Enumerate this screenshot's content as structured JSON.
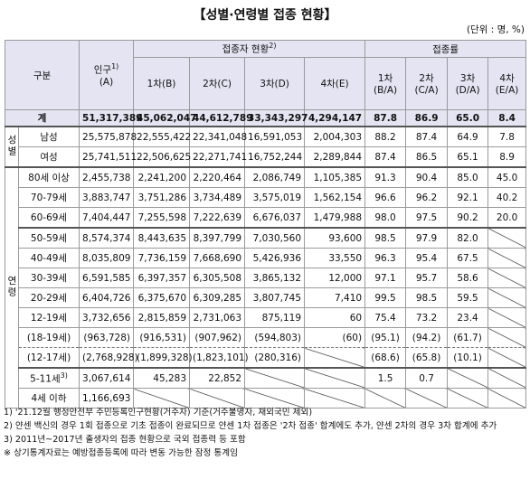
{
  "title": "【성별·연령별 접종 현황】",
  "unit": "(단위 : 명, %)",
  "table": {
    "header": {
      "group": "구분",
      "population": {
        "text": "인구",
        "note": "1)",
        "sub": "(A)"
      },
      "vaccinated": {
        "text": "접종자 현황",
        "note": "2)"
      },
      "rate": "접종률",
      "vaccinated_cols": [
        "1차(B)",
        "2차(C)",
        "3차(D)",
        "4차(E)"
      ],
      "rate_cols": [
        [
          "1차",
          "(B/A)"
        ],
        [
          "2차",
          "(C/A)"
        ],
        [
          "3차",
          "(D/A)"
        ],
        [
          "4차",
          "(E/A)"
        ]
      ]
    },
    "total": {
      "label": "계",
      "cells": [
        "51,317,389",
        "45,062,047",
        "44,612,789",
        "33,343,297",
        "4,294,147",
        "87.8",
        "86.9",
        "65.0",
        "8.4"
      ]
    },
    "groups": [
      {
        "label": "성별",
        "rows": [
          {
            "label": "남성",
            "cells": [
              "25,575,878",
              "22,555,422",
              "22,341,048",
              "16,591,053",
              "2,004,303",
              "88.2",
              "87.4",
              "64.9",
              "7.8"
            ]
          },
          {
            "label": "여성",
            "cells": [
              "25,741,511",
              "22,506,625",
              "22,271,741",
              "16,752,244",
              "2,289,844",
              "87.4",
              "86.5",
              "65.1",
              "8.9"
            ]
          }
        ]
      },
      {
        "label": "연령",
        "rows": [
          {
            "label": "80세 이상",
            "cells": [
              "2,455,738",
              "2,241,200",
              "2,220,464",
              "2,086,749",
              "1,105,385",
              "91.3",
              "90.4",
              "85.0",
              "45.0"
            ]
          },
          {
            "label": "70-79세",
            "cells": [
              "3,883,747",
              "3,751,286",
              "3,734,489",
              "3,575,019",
              "1,562,154",
              "96.6",
              "96.2",
              "92.1",
              "40.2"
            ]
          },
          {
            "label": "60-69세",
            "cells": [
              "7,404,447",
              "7,255,598",
              "7,222,639",
              "6,676,037",
              "1,479,988",
              "98.0",
              "97.5",
              "90.2",
              "20.0"
            ]
          },
          {
            "label": "50-59세",
            "cells": [
              "8,574,374",
              "8,443,635",
              "8,397,799",
              "7,030,560",
              "93,600",
              "98.5",
              "97.9",
              "82.0",
              null
            ]
          },
          {
            "label": "40-49세",
            "cells": [
              "8,035,809",
              "7,736,159",
              "7,668,690",
              "5,426,936",
              "33,550",
              "96.3",
              "95.4",
              "67.5",
              null
            ]
          },
          {
            "label": "30-39세",
            "cells": [
              "6,591,585",
              "6,397,357",
              "6,305,508",
              "3,865,132",
              "12,000",
              "97.1",
              "95.7",
              "58.6",
              null
            ]
          },
          {
            "label": "20-29세",
            "cells": [
              "6,404,726",
              "6,375,670",
              "6,309,285",
              "3,807,745",
              "7,410",
              "99.5",
              "98.5",
              "59.5",
              null
            ]
          },
          {
            "label": "12-19세",
            "cells": [
              "3,732,656",
              "2,815,859",
              "2,731,063",
              "875,119",
              "60",
              "75.4",
              "73.2",
              "23.4",
              null
            ]
          },
          {
            "label": "(18-19세)",
            "cells": [
              "(963,728)",
              "(916,531)",
              "(907,962)",
              "(594,803)",
              "(60)",
              "(95.1)",
              "(94.2)",
              "(61.7)",
              null
            ]
          },
          {
            "label": "(12-17세)",
            "cells": [
              "(2,768,928)",
              "(1,899,328)",
              "(1,823,101)",
              "(280,316)",
              null,
              "(68.6)",
              "(65.8)",
              "(10.1)",
              null
            ]
          },
          {
            "label": "5-11세",
            "note": "3)",
            "cells": [
              "3,067,614",
              "45,283",
              "22,852",
              null,
              null,
              "1.5",
              "0.7",
              null,
              null
            ]
          },
          {
            "label": "4세 이하",
            "cells": [
              "1,166,693",
              null,
              null,
              null,
              null,
              null,
              null,
              null,
              null
            ]
          }
        ]
      }
    ]
  },
  "footnotes": [
    {
      "mark": "1)",
      "text": "'21.12월 행정안전부 주민등록인구현황(거주자) 기준(거주불명자, 재외국민 제외)"
    },
    {
      "mark": "2)",
      "text": "얀센 백신의 경우 1회 접종으로 기초 접종이 완료되므로 얀센 1차 접종은 '2차 접종' 합계에도 추가, 얀센 2차의 경우 3차 합계에 추가"
    },
    {
      "mark": "3)",
      "text": "2011년~2017년 출생자의 접종 현황으로 국외 접종력 등 포함"
    },
    {
      "mark": "※",
      "text": "상기통계자료는 예방접종등록에 따라 변동 가능한 잠정 통계임"
    }
  ]
}
